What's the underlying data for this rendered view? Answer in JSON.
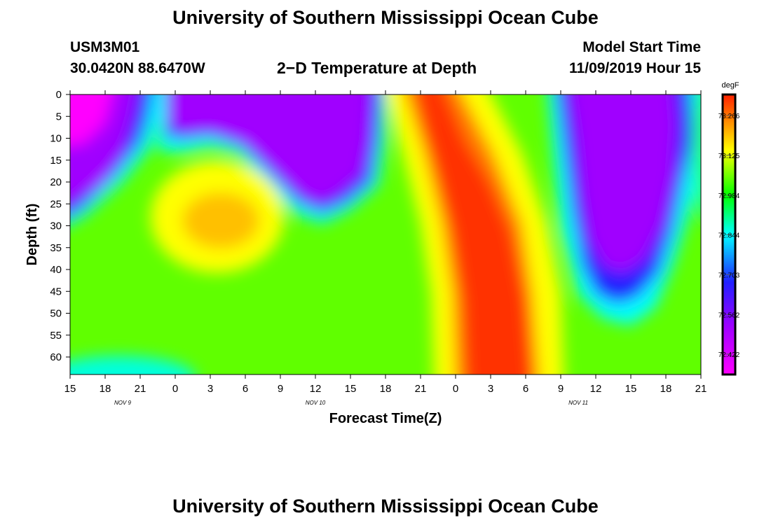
{
  "header": {
    "title": "University of Southern Mississippi Ocean Cube",
    "footer_title": "University of Southern Mississippi Ocean Cube",
    "station_id": "USM3M01",
    "station_coords": "30.0420N 88.6470W",
    "model_start_label": "Model Start Time",
    "model_start_value": "11/09/2019 Hour 15"
  },
  "chart_data": {
    "type": "heatmap",
    "title": "2−D Temperature at Depth",
    "xlabel": "Forecast Time(Z)",
    "ylabel": "Depth (ft)",
    "units": "degF",
    "xlim": [
      0,
      54
    ],
    "ylim": [
      0,
      64
    ],
    "y_ticks": [
      "0",
      "5",
      "10",
      "15",
      "20",
      "25",
      "30",
      "35",
      "40",
      "45",
      "50",
      "55",
      "60"
    ],
    "x_ticks": [
      "15",
      "18",
      "21",
      "0",
      "3",
      "6",
      "9",
      "12",
      "15",
      "18",
      "21",
      "0",
      "3",
      "6",
      "9",
      "12",
      "15",
      "18",
      "21"
    ],
    "x_date_labels": [
      {
        "label": "NOV  9",
        "hour": 4.5
      },
      {
        "label": "NOV  10",
        "hour": 21
      },
      {
        "label": "NOV  11",
        "hour": 43.5
      }
    ],
    "colorbar_labels": [
      "73.266",
      "73.125",
      "72.984",
      "72.844",
      "72.703",
      "72.562",
      "72.422"
    ],
    "colorbar_range": [
      72.35,
      73.34
    ],
    "colorscale": [
      "#ff00ff",
      "#a000ff",
      "#2020ff",
      "#00ffff",
      "#00ff00",
      "#ffff00",
      "#ff2000"
    ]
  }
}
